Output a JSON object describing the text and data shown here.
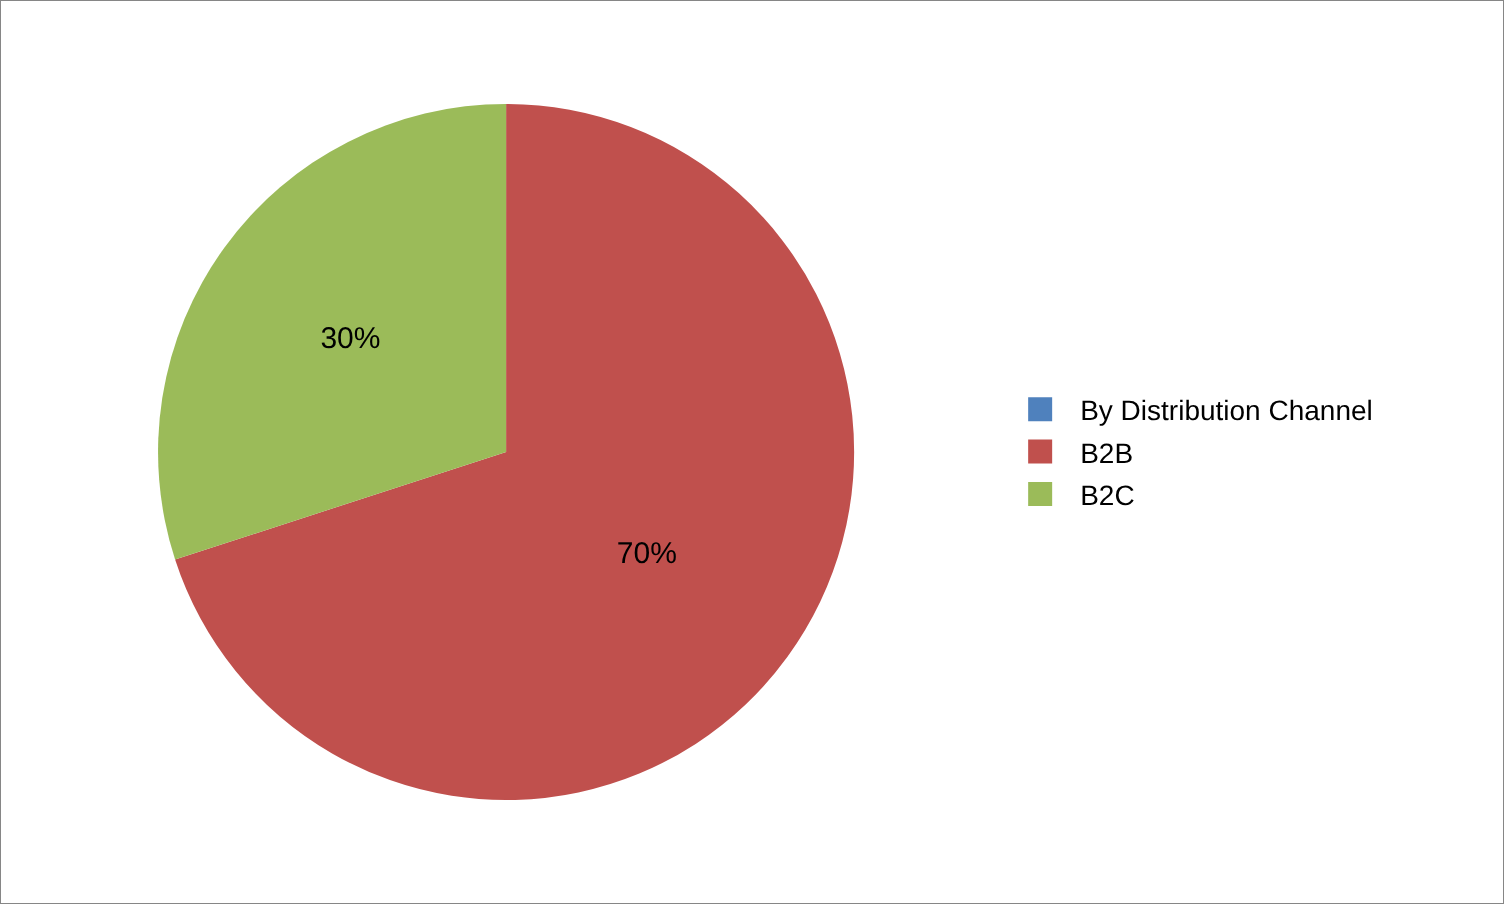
{
  "chart_data": {
    "type": "pie",
    "categories": [
      "By Distribution Channel",
      "B2B",
      "B2C"
    ],
    "values": [
      0,
      70,
      30
    ],
    "colors": [
      "#4f81bd",
      "#c0504d",
      "#9bbb59"
    ],
    "value_labels": [
      null,
      "70%",
      "30%"
    ],
    "legend": "right"
  }
}
